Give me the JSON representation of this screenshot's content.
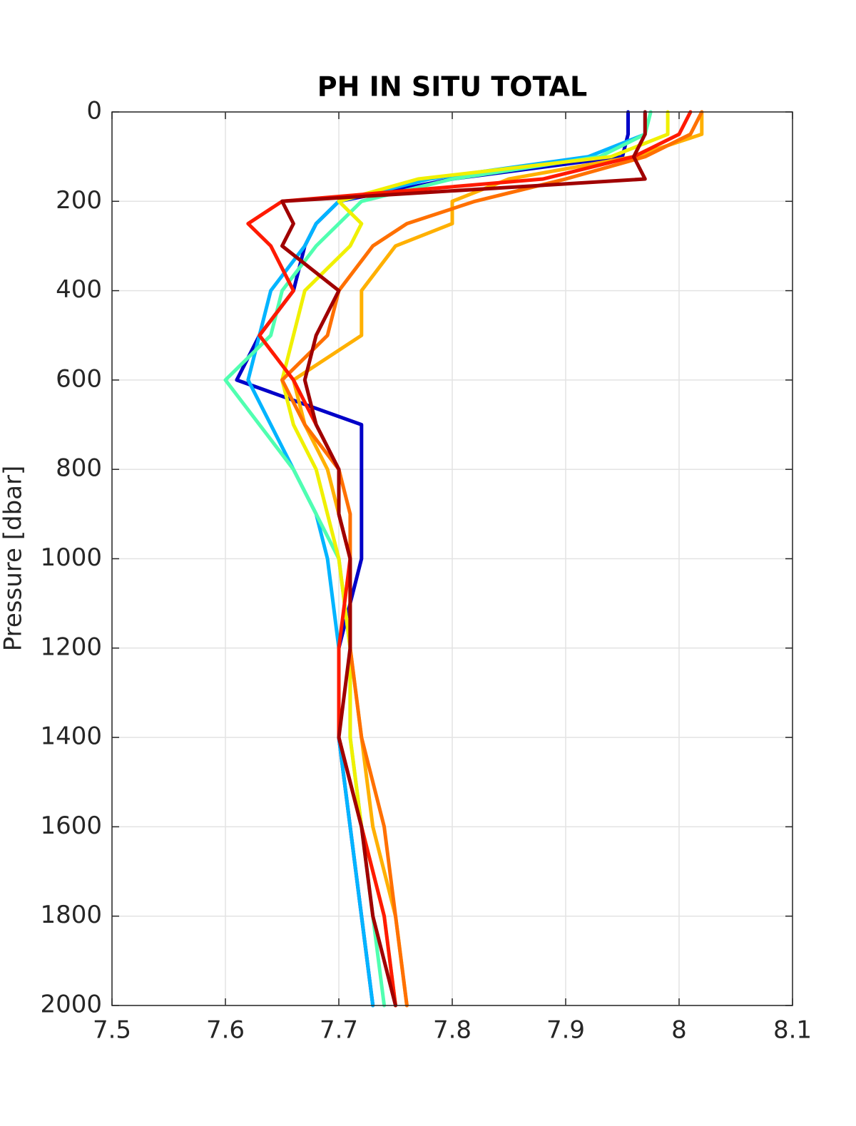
{
  "chart_data": {
    "type": "line",
    "title": "PH IN SITU TOTAL",
    "y_label": "Pressure [dbar]",
    "y": [
      0,
      50,
      100,
      150,
      200,
      250,
      300,
      400,
      500,
      600,
      700,
      800,
      900,
      1000,
      1200,
      1400,
      1600,
      1800,
      2000
    ],
    "series": [
      {
        "color": "#0000c8",
        "values": [
          7.955,
          7.955,
          7.95,
          7.8,
          7.7,
          7.68,
          7.67,
          7.66,
          7.63,
          7.61,
          7.72,
          7.72,
          7.72,
          7.72,
          7.7,
          7.7,
          7.71,
          7.72,
          7.73
        ]
      },
      {
        "color": "#00b4ff",
        "values": [
          7.97,
          7.97,
          7.92,
          7.78,
          7.7,
          7.68,
          7.67,
          7.64,
          7.63,
          7.62,
          7.64,
          7.66,
          7.68,
          7.69,
          7.7,
          7.7,
          7.71,
          7.72,
          7.73
        ]
      },
      {
        "color": "#50ffb0",
        "values": [
          7.975,
          7.97,
          7.93,
          7.8,
          7.72,
          7.7,
          7.68,
          7.65,
          7.64,
          7.6,
          7.63,
          7.66,
          7.68,
          7.7,
          7.71,
          7.71,
          7.72,
          7.73,
          7.74
        ]
      },
      {
        "color": "#f0f000",
        "values": [
          7.99,
          7.99,
          7.94,
          7.77,
          7.7,
          7.72,
          7.71,
          7.67,
          7.66,
          7.65,
          7.66,
          7.68,
          7.69,
          7.7,
          7.71,
          7.71,
          7.72,
          7.74,
          7.75
        ]
      },
      {
        "color": "#ffb000",
        "values": [
          8.02,
          8.02,
          7.96,
          7.85,
          7.8,
          7.8,
          7.75,
          7.72,
          7.72,
          7.66,
          7.67,
          7.69,
          7.7,
          7.71,
          7.71,
          7.72,
          7.73,
          7.75,
          7.76
        ]
      },
      {
        "color": "#ff7000",
        "values": [
          8.02,
          8.01,
          7.97,
          7.9,
          7.82,
          7.76,
          7.73,
          7.7,
          7.69,
          7.65,
          7.67,
          7.7,
          7.71,
          7.71,
          7.71,
          7.72,
          7.74,
          7.75,
          7.76
        ]
      },
      {
        "color": "#ff1a00",
        "values": [
          8.01,
          8.0,
          7.96,
          7.88,
          7.65,
          7.62,
          7.64,
          7.66,
          7.63,
          7.66,
          7.68,
          7.7,
          7.7,
          7.71,
          7.7,
          7.7,
          7.72,
          7.74,
          7.75
        ]
      },
      {
        "color": "#a00000",
        "values": [
          7.97,
          7.97,
          7.96,
          7.97,
          7.65,
          7.66,
          7.65,
          7.7,
          7.68,
          7.67,
          7.68,
          7.7,
          7.7,
          7.71,
          7.71,
          7.7,
          7.72,
          7.73,
          7.75
        ]
      }
    ],
    "xlim": [
      7.5,
      8.1
    ],
    "xticks": [
      7.5,
      7.6,
      7.7,
      7.8,
      7.9,
      8,
      8.1
    ],
    "ylim": [
      0,
      2000
    ],
    "yticks": [
      0,
      200,
      400,
      600,
      800,
      1000,
      1200,
      1400,
      1600,
      1800,
      2000
    ],
    "y_reversed": true,
    "grid": true
  }
}
